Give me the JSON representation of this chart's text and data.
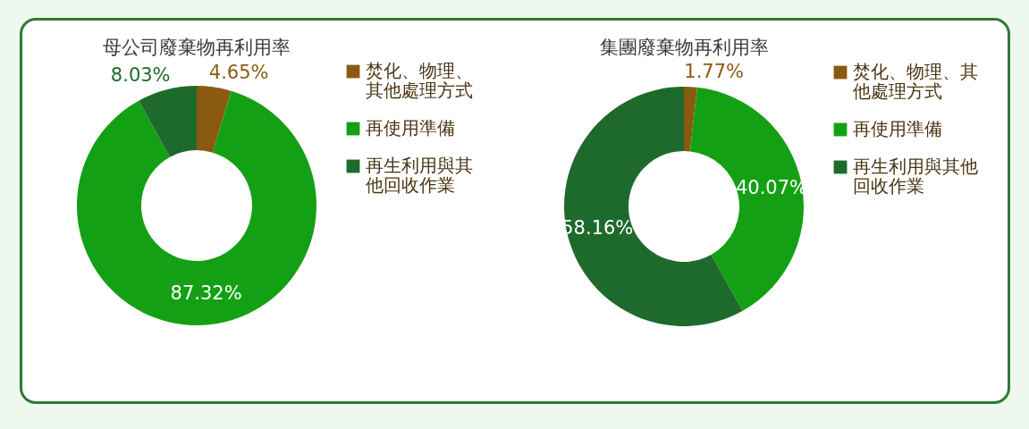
{
  "chart_data": [
    {
      "type": "donut",
      "title": "母公司廢棄物再利用率",
      "categories": [
        "焚化、物理、其他處理方式",
        "再使用準備",
        "再生利用與其他回收作業"
      ],
      "values": [
        4.65,
        87.32,
        8.03
      ],
      "colors": [
        "#8b5a12",
        "#14a014",
        "#1e6a2c"
      ],
      "value_labels": [
        "4.65%",
        "87.32%",
        "8.03%"
      ],
      "legend": "right"
    },
    {
      "type": "donut",
      "title": "集團廢棄物再利用率",
      "categories": [
        "焚化、物理、其他處理方式",
        "再使用準備",
        "再生利用與其他回收作業"
      ],
      "values": [
        1.77,
        40.07,
        58.16
      ],
      "colors": [
        "#8b5a12",
        "#14a014",
        "#1e6a2c"
      ],
      "value_labels": [
        "1.77%",
        "40.07%",
        "58.16%"
      ],
      "legend": "right"
    }
  ]
}
